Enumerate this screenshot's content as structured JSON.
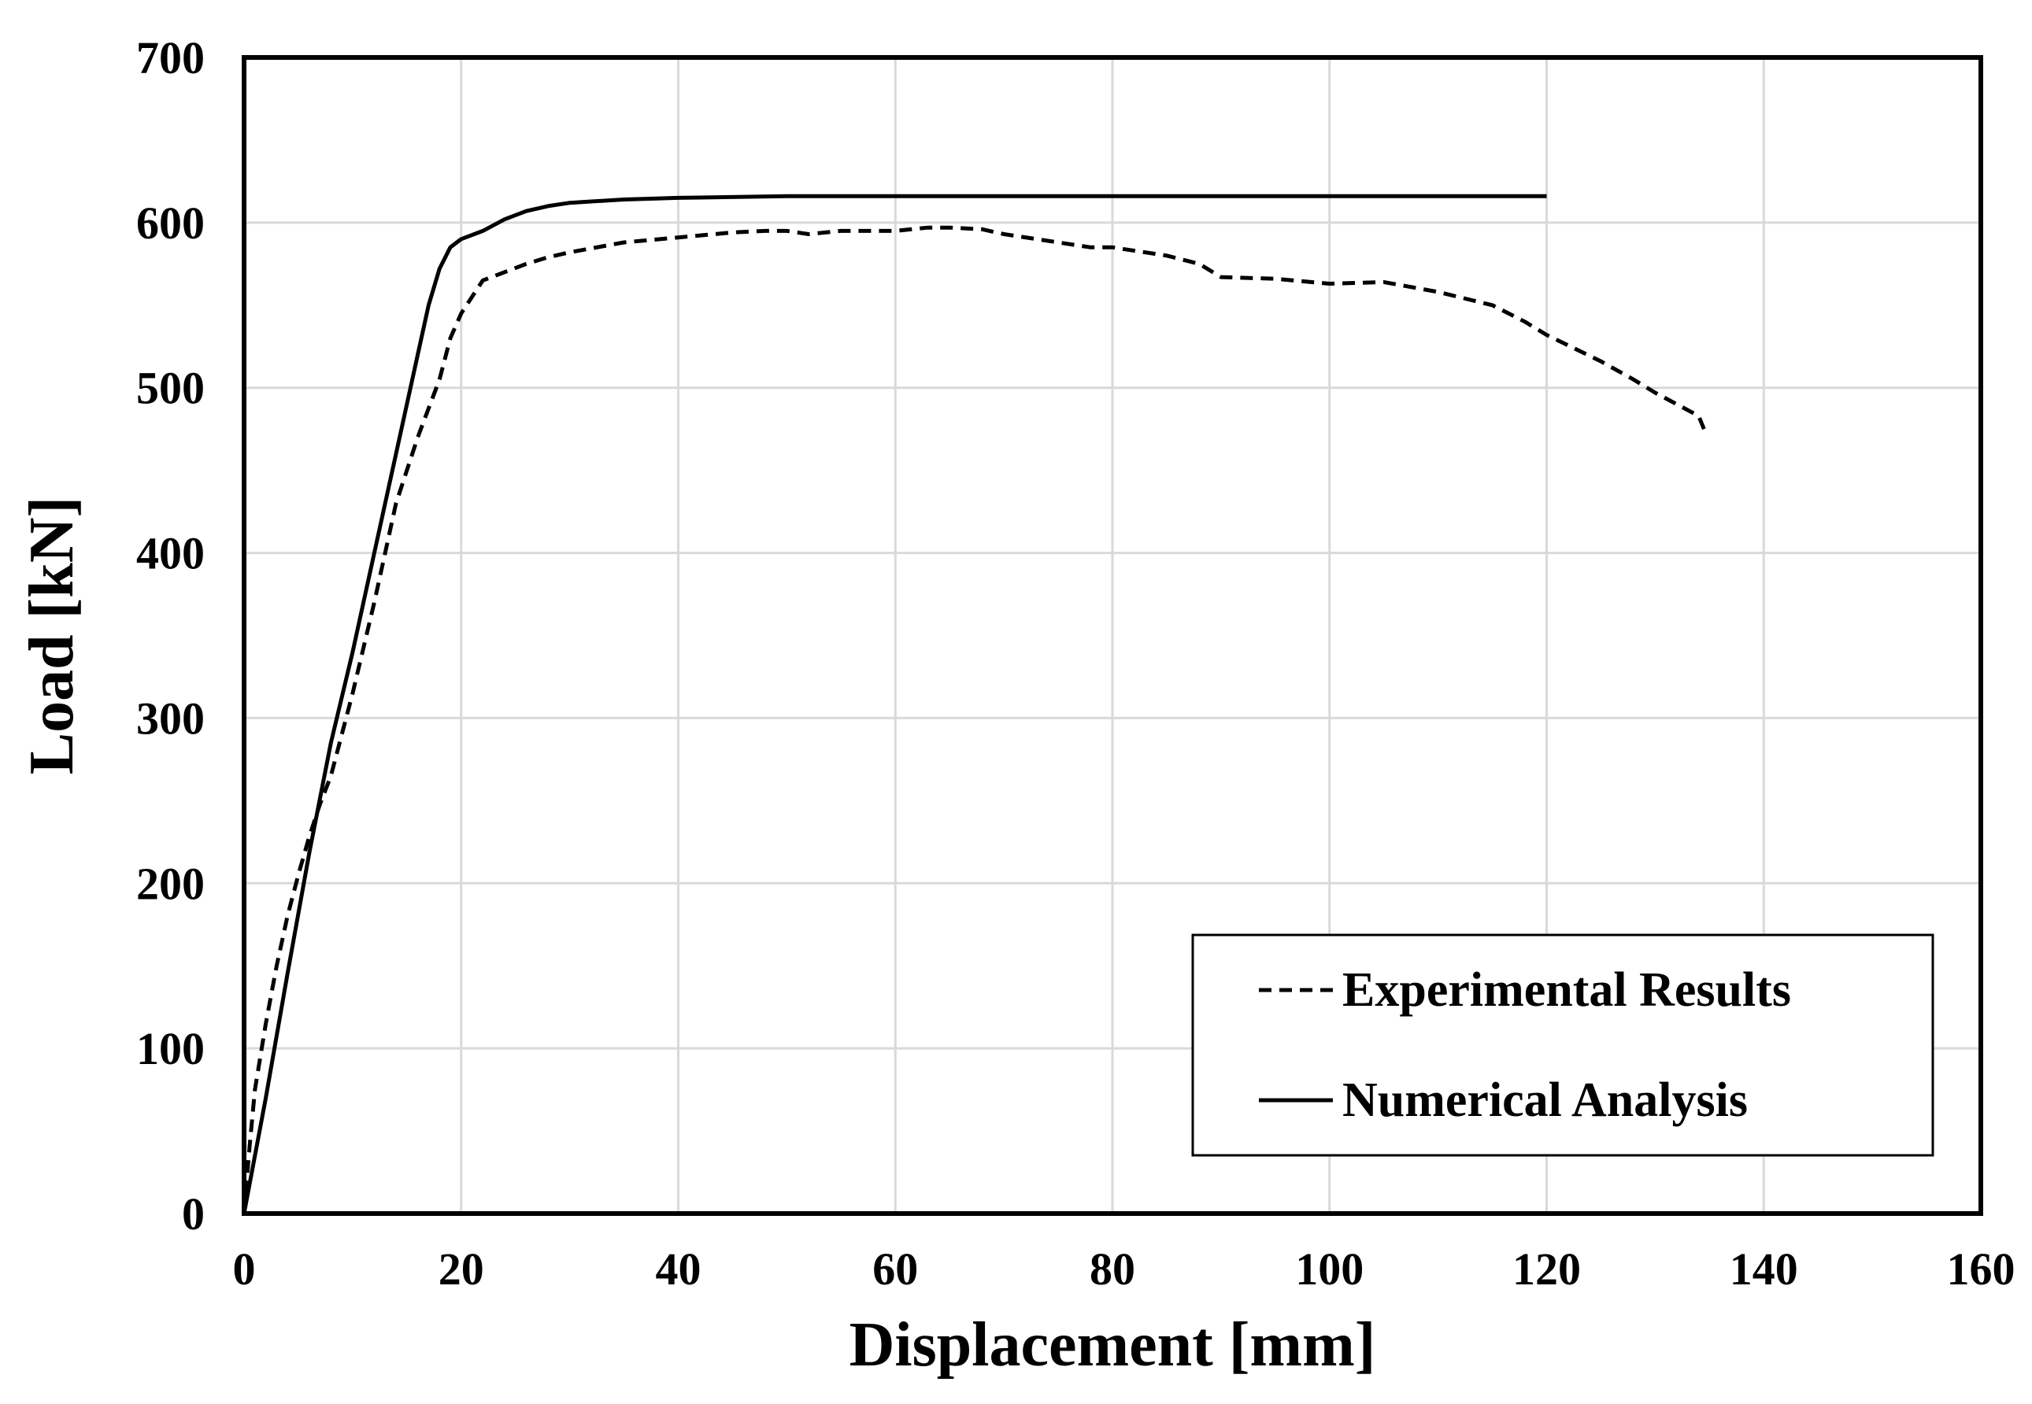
{
  "chart_data": {
    "type": "line",
    "title": "",
    "xlabel": "Displacement [mm]",
    "ylabel": "Load [kN]",
    "xlim": [
      0,
      160
    ],
    "ylim": [
      0,
      700
    ],
    "xticks": [
      0,
      20,
      40,
      60,
      80,
      100,
      120,
      140,
      160
    ],
    "yticks": [
      0,
      100,
      200,
      300,
      400,
      500,
      600,
      700
    ],
    "xtick_labels": [
      "0",
      "20",
      "40",
      "60",
      "80",
      "100",
      "120",
      "140",
      "160"
    ],
    "ytick_labels": [
      "0",
      "100",
      "200",
      "300",
      "400",
      "500",
      "600",
      "700"
    ],
    "grid": true,
    "legend_position": "bottom-right",
    "series": [
      {
        "name": "Experimental Results",
        "style": "dashed",
        "color": "#000000",
        "x": [
          0,
          0.5,
          1,
          2,
          3,
          4,
          5,
          6,
          7,
          8,
          10,
          12,
          14,
          16,
          18,
          19,
          20,
          21,
          22,
          24,
          26,
          28,
          30,
          35,
          40,
          45,
          48,
          50,
          52,
          55,
          60,
          63,
          65,
          68,
          70,
          75,
          78,
          80,
          85,
          88,
          90,
          95,
          100,
          105,
          110,
          115,
          118,
          120,
          125,
          128,
          130,
          132,
          134,
          134.5
        ],
        "y": [
          0,
          40,
          75,
          115,
          150,
          180,
          205,
          228,
          248,
          265,
          315,
          370,
          430,
          470,
          505,
          530,
          545,
          555,
          565,
          570,
          575,
          579,
          582,
          588,
          591,
          594,
          595,
          595,
          593,
          595,
          595,
          597,
          597,
          596,
          593,
          588,
          585,
          585,
          580,
          575,
          567,
          566,
          563,
          564,
          558,
          550,
          540,
          532,
          516,
          505,
          497,
          490,
          483,
          475
        ]
      },
      {
        "name": "Numerical Analysis",
        "style": "solid",
        "color": "#000000",
        "x": [
          0,
          2,
          4,
          6,
          8,
          10,
          12,
          14,
          16,
          17,
          18,
          19,
          20,
          22,
          24,
          26,
          28,
          30,
          35,
          40,
          50,
          60,
          80,
          100,
          120
        ],
        "y": [
          0,
          70,
          145,
          218,
          285,
          340,
          400,
          460,
          520,
          550,
          572,
          585,
          590,
          595,
          602,
          607,
          610,
          612,
          614,
          615,
          616,
          616,
          616,
          616,
          616
        ]
      }
    ]
  }
}
